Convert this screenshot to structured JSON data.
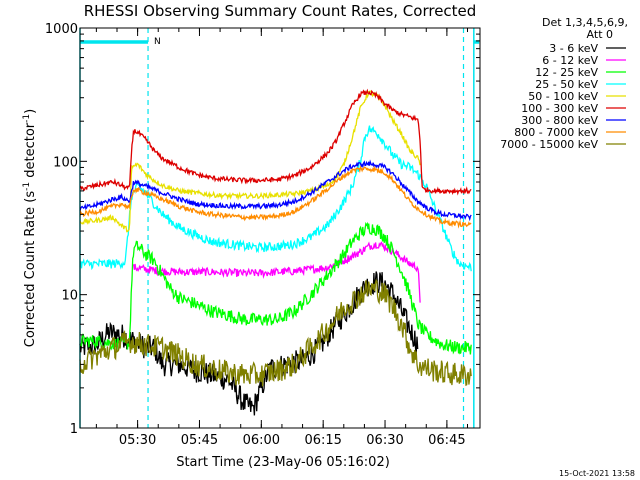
{
  "chart_data": {
    "type": "line",
    "title": "RHESSI Observing Summary Count Rates, Corrected",
    "xlabel": "Start Time (23-May-06 05:16:02)",
    "ylabel_main": "Corrected Count Rate (s",
    "ylabel_sup1": "-1",
    "ylabel_mid": " detector",
    "ylabel_sup2": "-1",
    "ylabel_end": ")",
    "ylabel_full": "Corrected Count Rate (s^-1 detector^-1)",
    "yscale": "log",
    "ylim": [
      1,
      1000
    ],
    "xlim_minutes": [
      0,
      97
    ],
    "x_ticks": [
      {
        "label": "05:30",
        "minutes": 13.97
      },
      {
        "label": "05:45",
        "minutes": 28.97
      },
      {
        "label": "06:00",
        "minutes": 43.97
      },
      {
        "label": "06:15",
        "minutes": 58.97
      },
      {
        "label": "06:30",
        "minutes": 73.97
      },
      {
        "label": "06:45",
        "minutes": 88.97
      }
    ],
    "y_ticks": [
      {
        "label": "1",
        "value": 1
      },
      {
        "label": "10",
        "value": 10
      },
      {
        "label": "100",
        "value": 100
      },
      {
        "label": "1000",
        "value": 1000
      }
    ],
    "legend_header": [
      "Det 1,3,4,5,6,9,",
      "Att 0"
    ],
    "night_flag": "N",
    "vlines_minutes": [
      0,
      95.5
    ],
    "dashed_vlines_minutes": [
      16.5,
      93
    ],
    "stamp": "15-Oct-2021 13:58",
    "series": [
      {
        "name": "3 - 6 keV",
        "color": "#000000",
        "points": [
          [
            0,
            4
          ],
          [
            4,
            4.2
          ],
          [
            7,
            5.2
          ],
          [
            10,
            5
          ],
          [
            13,
            4.5
          ],
          [
            16,
            4
          ],
          [
            18,
            4
          ],
          [
            20,
            3
          ],
          [
            24,
            3
          ],
          [
            28,
            2.7
          ],
          [
            32,
            2.5
          ],
          [
            36,
            2.3
          ],
          [
            40,
            1.5
          ],
          [
            42,
            1.4
          ],
          [
            44,
            2
          ],
          [
            46,
            2.8
          ],
          [
            50,
            3
          ],
          [
            54,
            3.2
          ],
          [
            58,
            4
          ],
          [
            62,
            6
          ],
          [
            66,
            8.5
          ],
          [
            68,
            10.5
          ],
          [
            70,
            12
          ],
          [
            72,
            12.5
          ],
          [
            74,
            12
          ],
          [
            76,
            10
          ],
          [
            78,
            7.5
          ],
          [
            80,
            5.5
          ],
          [
            82,
            4.2
          ]
        ]
      },
      {
        "name": "6 - 12 keV",
        "color": "#ff00ff",
        "points": [
          [
            13,
            16
          ],
          [
            16,
            15.5
          ],
          [
            20,
            15
          ],
          [
            24,
            14.8
          ],
          [
            28,
            14.8
          ],
          [
            32,
            14.8
          ],
          [
            36,
            14.6
          ],
          [
            40,
            14.5
          ],
          [
            44,
            14.5
          ],
          [
            48,
            14.8
          ],
          [
            52,
            15
          ],
          [
            56,
            15.5
          ],
          [
            60,
            16
          ],
          [
            64,
            18
          ],
          [
            68,
            21
          ],
          [
            70,
            23
          ],
          [
            72,
            24
          ],
          [
            74,
            23
          ],
          [
            76,
            21
          ],
          [
            78,
            19
          ],
          [
            80,
            17
          ],
          [
            82,
            16
          ],
          [
            82.5,
            8
          ]
        ]
      },
      {
        "name": "12 - 25 keV",
        "color": "#00ff00",
        "points": [
          [
            0,
            4.5
          ],
          [
            4,
            4.5
          ],
          [
            8,
            4.3
          ],
          [
            12,
            4.3
          ],
          [
            12.5,
            12
          ],
          [
            13,
            22
          ],
          [
            14,
            23
          ],
          [
            16,
            20
          ],
          [
            18,
            18
          ],
          [
            20,
            14
          ],
          [
            22,
            11
          ],
          [
            24,
            9.5
          ],
          [
            28,
            8.5
          ],
          [
            32,
            7.5
          ],
          [
            36,
            7
          ],
          [
            40,
            6.5
          ],
          [
            44,
            6.5
          ],
          [
            48,
            6.5
          ],
          [
            52,
            7.5
          ],
          [
            56,
            10
          ],
          [
            60,
            14
          ],
          [
            64,
            20
          ],
          [
            66,
            25
          ],
          [
            68,
            29
          ],
          [
            70,
            32
          ],
          [
            72,
            31
          ],
          [
            74,
            27
          ],
          [
            76,
            21
          ],
          [
            78,
            15
          ],
          [
            80,
            10
          ],
          [
            82,
            6
          ],
          [
            84,
            5
          ],
          [
            88,
            4.2
          ],
          [
            92,
            4
          ],
          [
            95,
            4
          ]
        ]
      },
      {
        "name": "25 - 50 keV",
        "color": "#00ffff",
        "points": [
          [
            0,
            17
          ],
          [
            4,
            17
          ],
          [
            8,
            17
          ],
          [
            11,
            17.5
          ],
          [
            12.5,
            55
          ],
          [
            14,
            65
          ],
          [
            16,
            58
          ],
          [
            18,
            48
          ],
          [
            20,
            40
          ],
          [
            24,
            32
          ],
          [
            28,
            28
          ],
          [
            32,
            25
          ],
          [
            36,
            24
          ],
          [
            40,
            23
          ],
          [
            44,
            22.5
          ],
          [
            48,
            23
          ],
          [
            52,
            24
          ],
          [
            56,
            27
          ],
          [
            60,
            33
          ],
          [
            62,
            40
          ],
          [
            64,
            50
          ],
          [
            66,
            65
          ],
          [
            68,
            100
          ],
          [
            69,
            150
          ],
          [
            70,
            175
          ],
          [
            72,
            165
          ],
          [
            74,
            135
          ],
          [
            76,
            110
          ],
          [
            78,
            95
          ],
          [
            80,
            90
          ],
          [
            82,
            80
          ],
          [
            84,
            65
          ],
          [
            86,
            45
          ],
          [
            88,
            32
          ],
          [
            90,
            22
          ],
          [
            92,
            17
          ],
          [
            95,
            16
          ]
        ]
      },
      {
        "name": "50 - 100 keV",
        "color": "#e8e000",
        "points": [
          [
            0,
            35
          ],
          [
            4,
            36
          ],
          [
            8,
            38
          ],
          [
            10,
            33
          ],
          [
            12,
            30
          ],
          [
            12.5,
            90
          ],
          [
            14,
            95
          ],
          [
            16,
            80
          ],
          [
            18,
            72
          ],
          [
            20,
            66
          ],
          [
            24,
            60
          ],
          [
            28,
            58
          ],
          [
            32,
            56
          ],
          [
            36,
            55
          ],
          [
            40,
            55
          ],
          [
            44,
            55
          ],
          [
            48,
            56
          ],
          [
            52,
            57
          ],
          [
            56,
            60
          ],
          [
            60,
            66
          ],
          [
            62,
            75
          ],
          [
            64,
            95
          ],
          [
            66,
            150
          ],
          [
            68,
            250
          ],
          [
            70,
            330
          ],
          [
            72,
            310
          ],
          [
            74,
            260
          ],
          [
            76,
            200
          ],
          [
            78,
            160
          ],
          [
            80,
            120
          ],
          [
            82,
            105
          ],
          [
            82.5,
            95
          ]
        ]
      },
      {
        "name": "100 - 300 keV",
        "color": "#dd0000",
        "points": [
          [
            0,
            62
          ],
          [
            4,
            66
          ],
          [
            8,
            70
          ],
          [
            10,
            66
          ],
          [
            12,
            62
          ],
          [
            12.5,
            120
          ],
          [
            13,
            170
          ],
          [
            14,
            165
          ],
          [
            16,
            145
          ],
          [
            18,
            120
          ],
          [
            20,
            105
          ],
          [
            24,
            90
          ],
          [
            28,
            80
          ],
          [
            32,
            75
          ],
          [
            36,
            73
          ],
          [
            40,
            72
          ],
          [
            44,
            72
          ],
          [
            48,
            73
          ],
          [
            52,
            78
          ],
          [
            56,
            90
          ],
          [
            60,
            115
          ],
          [
            62,
            140
          ],
          [
            64,
            190
          ],
          [
            66,
            260
          ],
          [
            68,
            320
          ],
          [
            70,
            330
          ],
          [
            72,
            310
          ],
          [
            74,
            270
          ],
          [
            76,
            240
          ],
          [
            78,
            225
          ],
          [
            80,
            215
          ],
          [
            82,
            205
          ],
          [
            82.5,
            140
          ],
          [
            83,
            62
          ],
          [
            86,
            60
          ],
          [
            90,
            60
          ],
          [
            95,
            60
          ]
        ]
      },
      {
        "name": "300 - 800 keV",
        "color": "#0000ff",
        "points": [
          [
            0,
            44
          ],
          [
            4,
            47
          ],
          [
            8,
            52
          ],
          [
            10,
            54
          ],
          [
            12,
            50
          ],
          [
            13,
            70
          ],
          [
            16,
            65
          ],
          [
            20,
            58
          ],
          [
            24,
            52
          ],
          [
            28,
            48
          ],
          [
            32,
            47
          ],
          [
            36,
            46
          ],
          [
            40,
            46
          ],
          [
            44,
            46
          ],
          [
            48,
            47
          ],
          [
            52,
            50
          ],
          [
            56,
            58
          ],
          [
            60,
            70
          ],
          [
            64,
            85
          ],
          [
            66,
            92
          ],
          [
            68,
            95
          ],
          [
            70,
            96
          ],
          [
            72,
            94
          ],
          [
            74,
            90
          ],
          [
            76,
            80
          ],
          [
            78,
            68
          ],
          [
            80,
            58
          ],
          [
            82,
            50
          ],
          [
            84,
            45
          ],
          [
            86,
            42
          ],
          [
            88,
            40
          ],
          [
            92,
            39
          ],
          [
            95,
            38
          ]
        ]
      },
      {
        "name": "800 - 7000 keV",
        "color": "#ff8c00",
        "points": [
          [
            0,
            40
          ],
          [
            4,
            42
          ],
          [
            8,
            46
          ],
          [
            10,
            48
          ],
          [
            12,
            45
          ],
          [
            13,
            62
          ],
          [
            16,
            58
          ],
          [
            20,
            52
          ],
          [
            24,
            46
          ],
          [
            28,
            42
          ],
          [
            32,
            40
          ],
          [
            36,
            39
          ],
          [
            40,
            38
          ],
          [
            44,
            38
          ],
          [
            48,
            39
          ],
          [
            52,
            42
          ],
          [
            56,
            50
          ],
          [
            60,
            62
          ],
          [
            64,
            78
          ],
          [
            66,
            85
          ],
          [
            68,
            88
          ],
          [
            70,
            88
          ],
          [
            72,
            86
          ],
          [
            74,
            82
          ],
          [
            76,
            72
          ],
          [
            78,
            60
          ],
          [
            80,
            50
          ],
          [
            82,
            44
          ],
          [
            84,
            40
          ],
          [
            86,
            37
          ],
          [
            88,
            35
          ],
          [
            92,
            34
          ],
          [
            95,
            33
          ]
        ]
      },
      {
        "name": "7000 - 15000 keV",
        "color": "#808000",
        "points": [
          [
            0,
            3
          ],
          [
            4,
            3.5
          ],
          [
            8,
            4
          ],
          [
            12,
            4.5
          ],
          [
            16,
            4.2
          ],
          [
            20,
            4
          ],
          [
            24,
            3.5
          ],
          [
            28,
            3
          ],
          [
            32,
            2.8
          ],
          [
            36,
            2.6
          ],
          [
            40,
            2.5
          ],
          [
            44,
            2.5
          ],
          [
            48,
            2.7
          ],
          [
            52,
            3
          ],
          [
            56,
            4
          ],
          [
            60,
            5.5
          ],
          [
            64,
            8
          ],
          [
            68,
            10
          ],
          [
            70,
            11
          ],
          [
            72,
            11
          ],
          [
            74,
            10
          ],
          [
            76,
            8
          ],
          [
            78,
            6
          ],
          [
            80,
            4
          ],
          [
            82,
            3
          ],
          [
            84,
            2.8
          ],
          [
            88,
            2.6
          ],
          [
            92,
            2.5
          ],
          [
            95,
            2.5
          ]
        ]
      }
    ]
  }
}
